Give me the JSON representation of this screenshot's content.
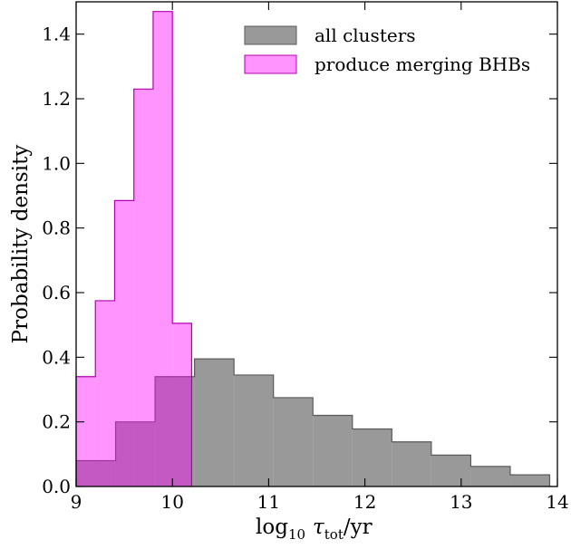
{
  "chart_data": {
    "type": "histogram",
    "xlabel": "log10 τtot/yr",
    "xlabel_parts": {
      "main": "log",
      "sub": "10",
      "var": "τ",
      "var_sub": "tot",
      "unit": "/yr"
    },
    "ylabel": "Probability density",
    "xlim": [
      9,
      14
    ],
    "ylim": [
      0,
      1.5
    ],
    "x_ticks": [
      9,
      10,
      11,
      12,
      13,
      14
    ],
    "y_ticks": [
      0.0,
      0.2,
      0.4,
      0.6,
      0.8,
      1.0,
      1.2,
      1.4
    ],
    "x_tick_labels": [
      "9",
      "10",
      "11",
      "12",
      "13",
      "14"
    ],
    "y_tick_labels": [
      "0.0",
      "0.2",
      "0.4",
      "0.6",
      "0.8",
      "1.0",
      "1.2",
      "1.4"
    ],
    "grid": false,
    "legend_position": "top-right",
    "series": [
      {
        "name": "all clusters",
        "color": "#808080",
        "edge_color": "#5a5a5a",
        "alpha": 0.8,
        "bin_edges": [
          9.0,
          9.41,
          9.82,
          10.23,
          10.64,
          11.05,
          11.46,
          11.87,
          12.28,
          12.69,
          13.1,
          13.51,
          13.92
        ],
        "values": [
          0.08,
          0.2,
          0.34,
          0.395,
          0.345,
          0.275,
          0.22,
          0.178,
          0.138,
          0.097,
          0.062,
          0.036
        ]
      },
      {
        "name": "produce merging BHBs",
        "color": "#ff00ff",
        "edge_color": "#b300b3",
        "alpha": 0.42,
        "bin_edges": [
          9.0,
          9.2,
          9.4,
          9.6,
          9.8,
          10.0,
          10.2
        ],
        "values": [
          0.34,
          0.575,
          0.885,
          1.23,
          1.47,
          0.505
        ]
      }
    ]
  }
}
